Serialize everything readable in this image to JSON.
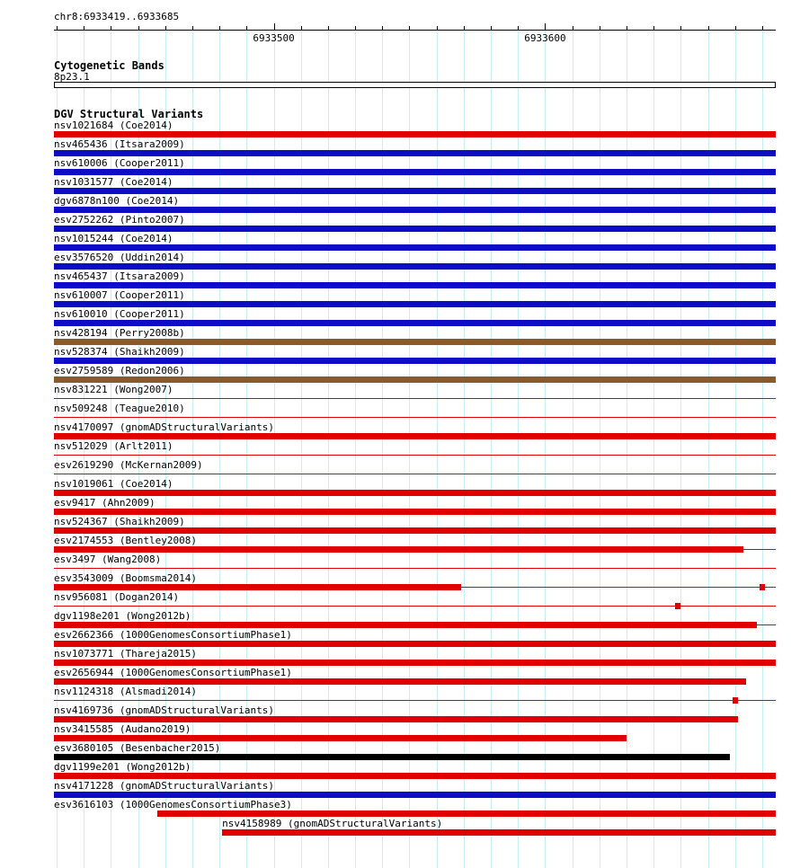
{
  "header": {
    "region": "chr8:6933419..6933685"
  },
  "sections": {
    "cytogenetic": {
      "title": "Cytogenetic Bands",
      "band": "8p23.1"
    },
    "dgv": {
      "title": "DGV Structural Variants"
    }
  },
  "colors": {
    "red": "#e00000",
    "blue": "#0d0dc8",
    "brown": "#8b5a2b",
    "black": "#000000",
    "grid": "#c9f0f0"
  },
  "chart_data": {
    "type": "genome-interval-track",
    "title": "DGV Structural Variants",
    "region": {
      "chrom": "chr8",
      "start": 6933419,
      "end": 6933685,
      "label": "chr8:6933419..6933685"
    },
    "axis": {
      "tick_step": 10,
      "major_ticks": [
        6933500,
        6933600
      ],
      "grid": true
    },
    "cytoband": {
      "name": "8p23.1",
      "start": 6933419,
      "end": 6933685
    },
    "tracks": [
      {
        "label": "nsv1021684 (Coe2014)",
        "color": "red",
        "segments": [
          {
            "start": 6933419,
            "end": 6933685,
            "style": "thick"
          }
        ]
      },
      {
        "label": "nsv465436 (Itsara2009)",
        "color": "blue",
        "segments": [
          {
            "start": 6933419,
            "end": 6933685,
            "style": "thick"
          }
        ]
      },
      {
        "label": "nsv610006 (Cooper2011)",
        "color": "blue",
        "segments": [
          {
            "start": 6933419,
            "end": 6933685,
            "style": "thick"
          }
        ]
      },
      {
        "label": "nsv1031577 (Coe2014)",
        "color": "blue",
        "segments": [
          {
            "start": 6933419,
            "end": 6933685,
            "style": "thick"
          }
        ]
      },
      {
        "label": "dgv6878n100 (Coe2014)",
        "color": "blue",
        "segments": [
          {
            "start": 6933419,
            "end": 6933685,
            "style": "thick"
          }
        ]
      },
      {
        "label": "esv2752262 (Pinto2007)",
        "color": "blue",
        "segments": [
          {
            "start": 6933419,
            "end": 6933685,
            "style": "thick"
          }
        ]
      },
      {
        "label": "nsv1015244 (Coe2014)",
        "color": "blue",
        "segments": [
          {
            "start": 6933419,
            "end": 6933685,
            "style": "thick"
          }
        ]
      },
      {
        "label": "esv3576520 (Uddin2014)",
        "color": "blue",
        "segments": [
          {
            "start": 6933419,
            "end": 6933685,
            "style": "thick"
          }
        ]
      },
      {
        "label": "nsv465437 (Itsara2009)",
        "color": "blue",
        "segments": [
          {
            "start": 6933419,
            "end": 6933685,
            "style": "thick"
          }
        ]
      },
      {
        "label": "nsv610007 (Cooper2011)",
        "color": "blue",
        "segments": [
          {
            "start": 6933419,
            "end": 6933685,
            "style": "thick"
          }
        ]
      },
      {
        "label": "nsv610010 (Cooper2011)",
        "color": "blue",
        "segments": [
          {
            "start": 6933419,
            "end": 6933685,
            "style": "thick"
          }
        ]
      },
      {
        "label": "nsv428194 (Perry2008b)",
        "color": "brown",
        "segments": [
          {
            "start": 6933419,
            "end": 6933685,
            "style": "thick"
          }
        ]
      },
      {
        "label": "nsv528374 (Shaikh2009)",
        "color": "blue",
        "segments": [
          {
            "start": 6933419,
            "end": 6933685,
            "style": "thick"
          }
        ]
      },
      {
        "label": "esv2759589 (Redon2006)",
        "color": "brown",
        "segments": [
          {
            "start": 6933419,
            "end": 6933685,
            "style": "thick"
          }
        ]
      },
      {
        "label": "nsv831221 (Wong2007)",
        "color": "red",
        "segments": [
          {
            "start": 6933419,
            "end": 6933685,
            "style": "thin"
          }
        ]
      },
      {
        "label": "nsv509248 (Teague2010)",
        "color": "red",
        "segments": [
          {
            "start": 6933419,
            "end": 6933685,
            "style": "thin"
          }
        ]
      },
      {
        "label": "nsv4170097 (gnomADStructuralVariants)",
        "color": "red",
        "segments": [
          {
            "start": 6933419,
            "end": 6933685,
            "style": "thick"
          }
        ]
      },
      {
        "label": "nsv512029 (Arlt2011)",
        "color": "red",
        "segments": [
          {
            "start": 6933419,
            "end": 6933685,
            "style": "thin"
          }
        ]
      },
      {
        "label": "esv2619290 (McKernan2009)",
        "color": "red",
        "segments": [
          {
            "start": 6933419,
            "end": 6933685,
            "style": "thin"
          }
        ]
      },
      {
        "label": "nsv1019061 (Coe2014)",
        "color": "red",
        "segments": [
          {
            "start": 6933419,
            "end": 6933685,
            "style": "thick"
          }
        ]
      },
      {
        "label": "esv9417 (Ahn2009)",
        "color": "red",
        "segments": [
          {
            "start": 6933419,
            "end": 6933685,
            "style": "thick"
          }
        ]
      },
      {
        "label": "nsv524367 (Shaikh2009)",
        "color": "red",
        "segments": [
          {
            "start": 6933419,
            "end": 6933685,
            "style": "thick"
          }
        ]
      },
      {
        "label": "esv2174553 (Bentley2008)",
        "color": "red",
        "segments": [
          {
            "start": 6933419,
            "end": 6933673,
            "style": "thick"
          },
          {
            "start": 6933673,
            "end": 6933685,
            "style": "thin"
          }
        ]
      },
      {
        "label": "esv3497 (Wang2008)",
        "color": "red",
        "segments": [
          {
            "start": 6933419,
            "end": 6933685,
            "style": "thin"
          }
        ]
      },
      {
        "label": "esv3543009 (Boomsma2014)",
        "color": "red",
        "segments": [
          {
            "start": 6933419,
            "end": 6933569,
            "style": "thick"
          },
          {
            "start": 6933569,
            "end": 6933685,
            "style": "thin"
          },
          {
            "start": 6933679,
            "end": 6933681,
            "style": "thick"
          }
        ]
      },
      {
        "label": "nsv956081 (Dogan2014)",
        "color": "red",
        "segments": [
          {
            "start": 6933419,
            "end": 6933685,
            "style": "thin"
          },
          {
            "start": 6933648,
            "end": 6933650,
            "style": "thick"
          }
        ]
      },
      {
        "label": "dgv1198e201 (Wong2012b)",
        "color": "red",
        "segments": [
          {
            "start": 6933419,
            "end": 6933678,
            "style": "thick"
          },
          {
            "start": 6933678,
            "end": 6933685,
            "style": "thin"
          }
        ]
      },
      {
        "label": "esv2662366 (1000GenomesConsortiumPhase1)",
        "color": "red",
        "segments": [
          {
            "start": 6933419,
            "end": 6933685,
            "style": "thick"
          }
        ]
      },
      {
        "label": "nsv1073771 (Thareja2015)",
        "color": "red",
        "segments": [
          {
            "start": 6933419,
            "end": 6933685,
            "style": "thick"
          }
        ]
      },
      {
        "label": "esv2656944 (1000GenomesConsortiumPhase1)",
        "color": "red",
        "segments": [
          {
            "start": 6933419,
            "end": 6933674,
            "style": "thick"
          }
        ]
      },
      {
        "label": "nsv1124318 (Alsmadi2014)",
        "color": "red",
        "segments": [
          {
            "start": 6933419,
            "end": 6933685,
            "style": "thin"
          },
          {
            "start": 6933669,
            "end": 6933671,
            "style": "thick"
          }
        ]
      },
      {
        "label": "nsv4169736 (gnomADStructuralVariants)",
        "color": "red",
        "segments": [
          {
            "start": 6933419,
            "end": 6933671,
            "style": "thick"
          }
        ]
      },
      {
        "label": "nsv3415585 (Audano2019)",
        "color": "red",
        "segments": [
          {
            "start": 6933419,
            "end": 6933630,
            "style": "thick"
          }
        ]
      },
      {
        "label": "esv3680105 (Besenbacher2015)",
        "color": "black",
        "segments": [
          {
            "start": 6933419,
            "end": 6933668,
            "style": "thick"
          }
        ]
      },
      {
        "label": "dgv1199e201 (Wong2012b)",
        "color": "red",
        "segments": [
          {
            "start": 6933419,
            "end": 6933685,
            "style": "thick"
          }
        ]
      },
      {
        "label": "nsv4171228 (gnomADStructuralVariants)",
        "color": "blue",
        "segments": [
          {
            "start": 6933419,
            "end": 6933685,
            "style": "thick"
          }
        ]
      },
      {
        "label": "esv3616103 (1000GenomesConsortiumPhase3)",
        "color": "red",
        "segments": [
          {
            "start": 6933457,
            "end": 6933685,
            "style": "thick"
          }
        ]
      },
      {
        "label": "nsv4158989 (gnomADStructuralVariants)",
        "color": "red",
        "label_at": 6933481,
        "segments": [
          {
            "start": 6933481,
            "end": 6933685,
            "style": "thick"
          }
        ]
      }
    ]
  }
}
